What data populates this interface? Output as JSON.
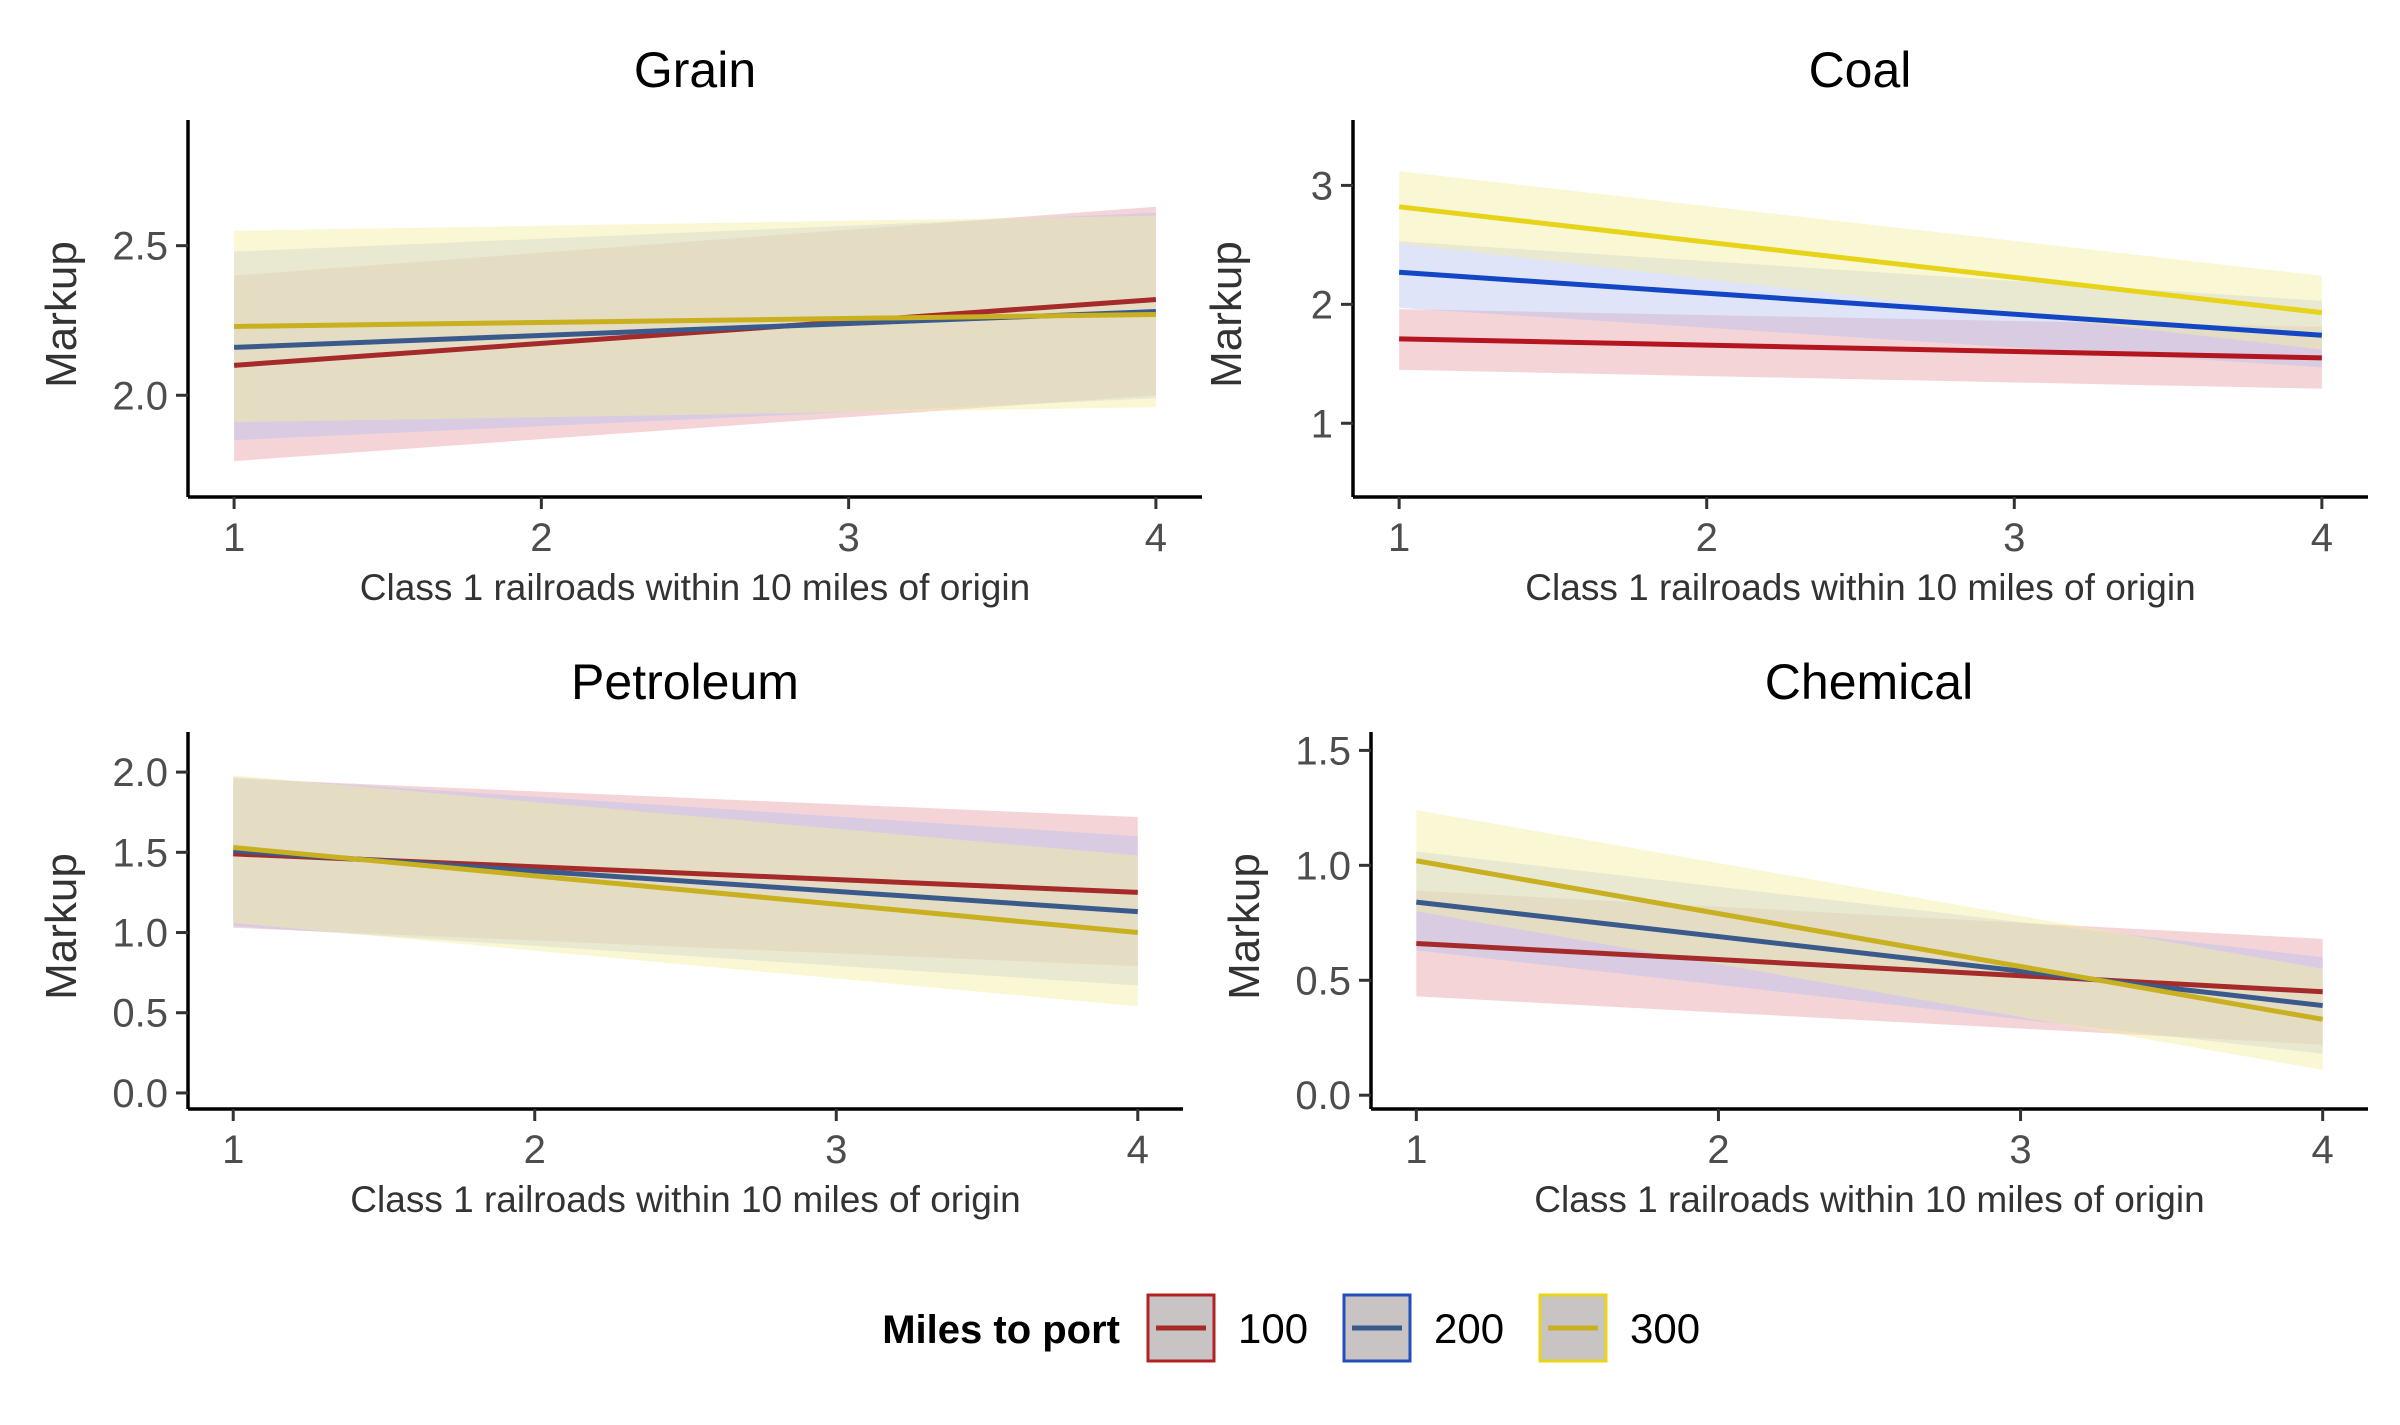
{
  "chart_data": [
    {
      "type": "line",
      "title": "Grain",
      "xlabel": "Class 1 railroads within 10 miles of origin",
      "ylabel": "Markup",
      "x_ticks": [
        1,
        2,
        3,
        4
      ],
      "y_ticks": [
        2.0,
        2.5
      ],
      "y_tick_labels": [
        "2.0",
        "2.5"
      ],
      "x_range": [
        0.85,
        4.15
      ],
      "ylim": [
        1.66,
        2.92
      ],
      "series": [
        {
          "name": "100",
          "x": [
            1,
            4
          ],
          "y": [
            2.1,
            2.32
          ],
          "lower": [
            1.78,
            2.0
          ],
          "upper": [
            2.4,
            2.63
          ]
        },
        {
          "name": "200",
          "x": [
            1,
            4
          ],
          "y": [
            2.16,
            2.28
          ],
          "lower": [
            1.85,
            1.99
          ],
          "upper": [
            2.48,
            2.61
          ]
        },
        {
          "name": "300",
          "x": [
            1,
            4
          ],
          "y": [
            2.23,
            2.27
          ],
          "lower": [
            1.91,
            1.96
          ],
          "upper": [
            2.55,
            2.6
          ]
        }
      ]
    },
    {
      "type": "line",
      "title": "Coal",
      "xlabel": "Class 1 railroads within 10 miles of origin",
      "ylabel": "Markup",
      "x_ticks": [
        1,
        2,
        3,
        4
      ],
      "y_ticks": [
        1,
        2,
        3
      ],
      "y_tick_labels": [
        "1",
        "2",
        "3"
      ],
      "x_range": [
        0.85,
        4.15
      ],
      "ylim": [
        0.38,
        3.55
      ],
      "series": [
        {
          "name": "100",
          "x": [
            1,
            4
          ],
          "y": [
            1.71,
            1.55
          ],
          "lower": [
            1.45,
            1.29
          ],
          "upper": [
            1.96,
            1.81
          ]
        },
        {
          "name": "200",
          "x": [
            1,
            4
          ],
          "y": [
            2.27,
            1.74
          ],
          "lower": [
            1.97,
            1.47
          ],
          "upper": [
            2.53,
            2.03
          ]
        },
        {
          "name": "300",
          "x": [
            1,
            4
          ],
          "y": [
            2.82,
            1.93
          ],
          "lower": [
            2.51,
            1.62
          ],
          "upper": [
            3.12,
            2.24
          ]
        }
      ]
    },
    {
      "type": "line",
      "title": "Petroleum",
      "xlabel": "Class 1 railroads within 10 miles of origin",
      "ylabel": "Markup",
      "x_ticks": [
        1,
        2,
        3,
        4
      ],
      "y_ticks": [
        0.0,
        0.5,
        1.0,
        1.5,
        2.0
      ],
      "y_tick_labels": [
        "0.0",
        "0.5",
        "1.0",
        "1.5",
        "2.0"
      ],
      "x_range": [
        0.85,
        4.15
      ],
      "ylim": [
        -0.1,
        2.25
      ],
      "series": [
        {
          "name": "100",
          "x": [
            1,
            4
          ],
          "y": [
            1.49,
            1.25
          ],
          "lower": [
            1.03,
            0.79
          ],
          "upper": [
            1.96,
            1.72
          ]
        },
        {
          "name": "200",
          "x": [
            1,
            4
          ],
          "y": [
            1.51,
            1.13
          ],
          "lower": [
            1.04,
            0.67
          ],
          "upper": [
            1.97,
            1.6
          ]
        },
        {
          "name": "300",
          "x": [
            1,
            4
          ],
          "y": [
            1.53,
            1.0
          ],
          "lower": [
            1.06,
            0.54
          ],
          "upper": [
            1.98,
            1.48
          ]
        }
      ]
    },
    {
      "type": "line",
      "title": "Chemical",
      "xlabel": "Class 1 railroads within 10 miles of origin",
      "ylabel": "Markup",
      "x_ticks": [
        1,
        2,
        3,
        4
      ],
      "y_ticks": [
        0.0,
        0.5,
        1.0,
        1.5
      ],
      "y_tick_labels": [
        "0.0",
        "0.5",
        "1.0",
        "1.5"
      ],
      "x_range": [
        0.85,
        4.15
      ],
      "ylim": [
        -0.06,
        1.58
      ],
      "series": [
        {
          "name": "100",
          "x": [
            1,
            4
          ],
          "y": [
            0.66,
            0.45
          ],
          "lower": [
            0.43,
            0.22
          ],
          "upper": [
            0.89,
            0.68
          ]
        },
        {
          "name": "200",
          "x": [
            1,
            4
          ],
          "y": [
            0.84,
            0.39
          ],
          "lower": [
            0.63,
            0.18
          ],
          "upper": [
            1.06,
            0.6
          ]
        },
        {
          "name": "300",
          "x": [
            1,
            4
          ],
          "y": [
            1.02,
            0.33
          ],
          "lower": [
            0.8,
            0.11
          ],
          "upper": [
            1.24,
            0.55
          ]
        }
      ]
    }
  ],
  "legend": {
    "title": "Miles to port",
    "items": [
      {
        "label": "100",
        "line_color": "#a52a2a",
        "box_color": "#b22222",
        "fill_color": "#e8a0a8"
      },
      {
        "label": "200",
        "line_color": "#3a5a8c",
        "box_color": "#1f4fb8",
        "fill_color": "#b8c4f0"
      },
      {
        "label": "300",
        "line_color": "#c8b020",
        "box_color": "#e8d41a",
        "fill_color": "#f4f0a0"
      }
    ]
  },
  "panel_series_colors": [
    [
      "#a52a2a",
      "#3a5a8c",
      "#c8b020"
    ],
    [
      "#b3161f",
      "#1246c4",
      "#e6d31a"
    ],
    [
      "#a52a2a",
      "#3a5a8c",
      "#c8b020"
    ],
    [
      "#a52a2a",
      "#3a5a8c",
      "#c8b020"
    ]
  ],
  "band_colors": [
    "#e8a0a8",
    "#b8c4f0",
    "#f4f0a0"
  ]
}
